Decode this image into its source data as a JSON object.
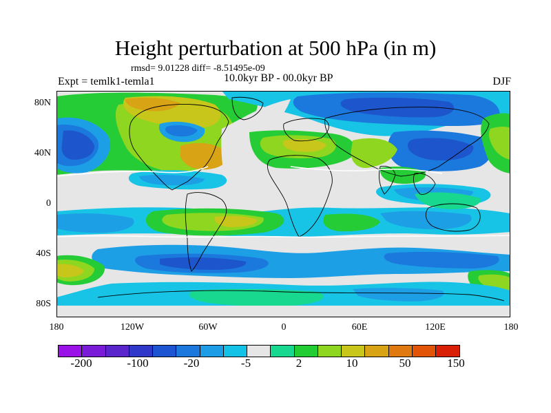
{
  "title": "Height perturbation at 500 hPa (in m)",
  "stats_line": "rmsd= 9.01228 diff= -8.51495e-09",
  "experiment_label": "Expt = temlk1-temla1",
  "period_label": "10.0kyr BP - 00.0kyr BP",
  "season_label": "DJF",
  "y_axis_labels": [
    "80N",
    "40N",
    "0",
    "40S",
    "80S"
  ],
  "x_axis_labels": [
    "180",
    "120W",
    "60W",
    "0",
    "60E",
    "120E",
    "180"
  ],
  "colorbar": {
    "colors": [
      "#9a12e8",
      "#7a1bd8",
      "#5a26cc",
      "#2f38c8",
      "#1c54d2",
      "#1c78dd",
      "#1d9de6",
      "#13c2e6",
      "#e6e6e6",
      "#18d890",
      "#22cc33",
      "#8ed61f",
      "#c8c61a",
      "#d9a316",
      "#e07a10",
      "#e25508",
      "#d91f05"
    ],
    "labels": [
      "-200",
      "-100",
      "-20",
      "-5",
      "2",
      "10",
      "50",
      "150"
    ]
  },
  "map_colors": {
    "neutral": "#e6e6e6",
    "cyan_light": "#17c4e6",
    "blue_light": "#1d9fe6",
    "blue_mid": "#1b78dc",
    "blue_dark": "#1d55cc",
    "navy": "#2535c0",
    "green_mint": "#18d890",
    "green": "#25cc35",
    "yellow_green": "#8ed61f",
    "yellow": "#c8c61a",
    "orange": "#d9a316"
  }
}
